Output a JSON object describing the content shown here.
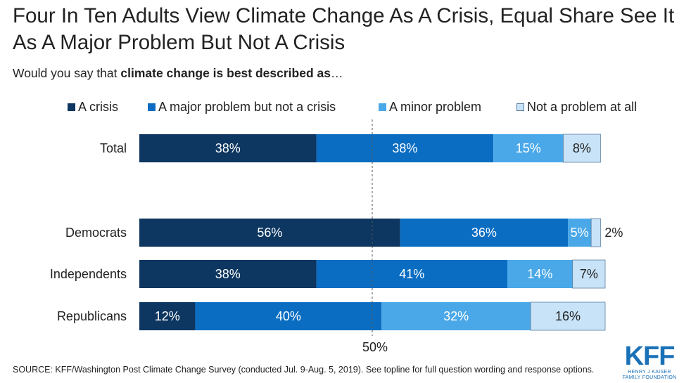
{
  "title": "Four In Ten Adults View Climate Change As A Crisis, Equal Share See It As A Major Problem But Not A Crisis",
  "subtitle": {
    "prefix": "Would you say that ",
    "bold": "climate change is best described as",
    "suffix": "…"
  },
  "colors": {
    "crisis": "#0d3660",
    "major": "#0a6dc2",
    "minor": "#4aa8e8",
    "not": "#c8e3f7"
  },
  "chart_data": {
    "type": "bar",
    "orientation": "horizontal",
    "stacked": true,
    "categories": [
      "Total",
      "Democrats",
      "Independents",
      "Republicans"
    ],
    "series": [
      {
        "name": "A crisis",
        "values": [
          38,
          56,
          38,
          12
        ],
        "labels": [
          "38%",
          "56%",
          "38%",
          "12%"
        ]
      },
      {
        "name": "A major problem but not a crisis",
        "values": [
          38,
          36,
          41,
          40
        ],
        "labels": [
          "38%",
          "36%",
          "41%",
          "40%"
        ]
      },
      {
        "name": "A minor problem",
        "values": [
          15,
          5,
          14,
          32
        ],
        "labels": [
          "15%",
          "5%",
          "14%",
          "32%"
        ]
      },
      {
        "name": "Not a problem at all",
        "values": [
          8,
          2,
          7,
          16
        ],
        "labels": [
          "8%",
          "2%",
          "7%",
          "16%"
        ]
      }
    ],
    "xlim": [
      0,
      100
    ],
    "reference_line": {
      "value": 50,
      "label": "50%"
    },
    "legend_position": "top"
  },
  "source": "SOURCE: KFF/Washington Post Climate Change Survey (conducted Jul. 9-Aug. 5, 2019). See topline for full question wording and response options.",
  "logo": {
    "mark": "KFF",
    "line1": "HENRY J KAISER",
    "line2": "FAMILY FOUNDATION"
  }
}
